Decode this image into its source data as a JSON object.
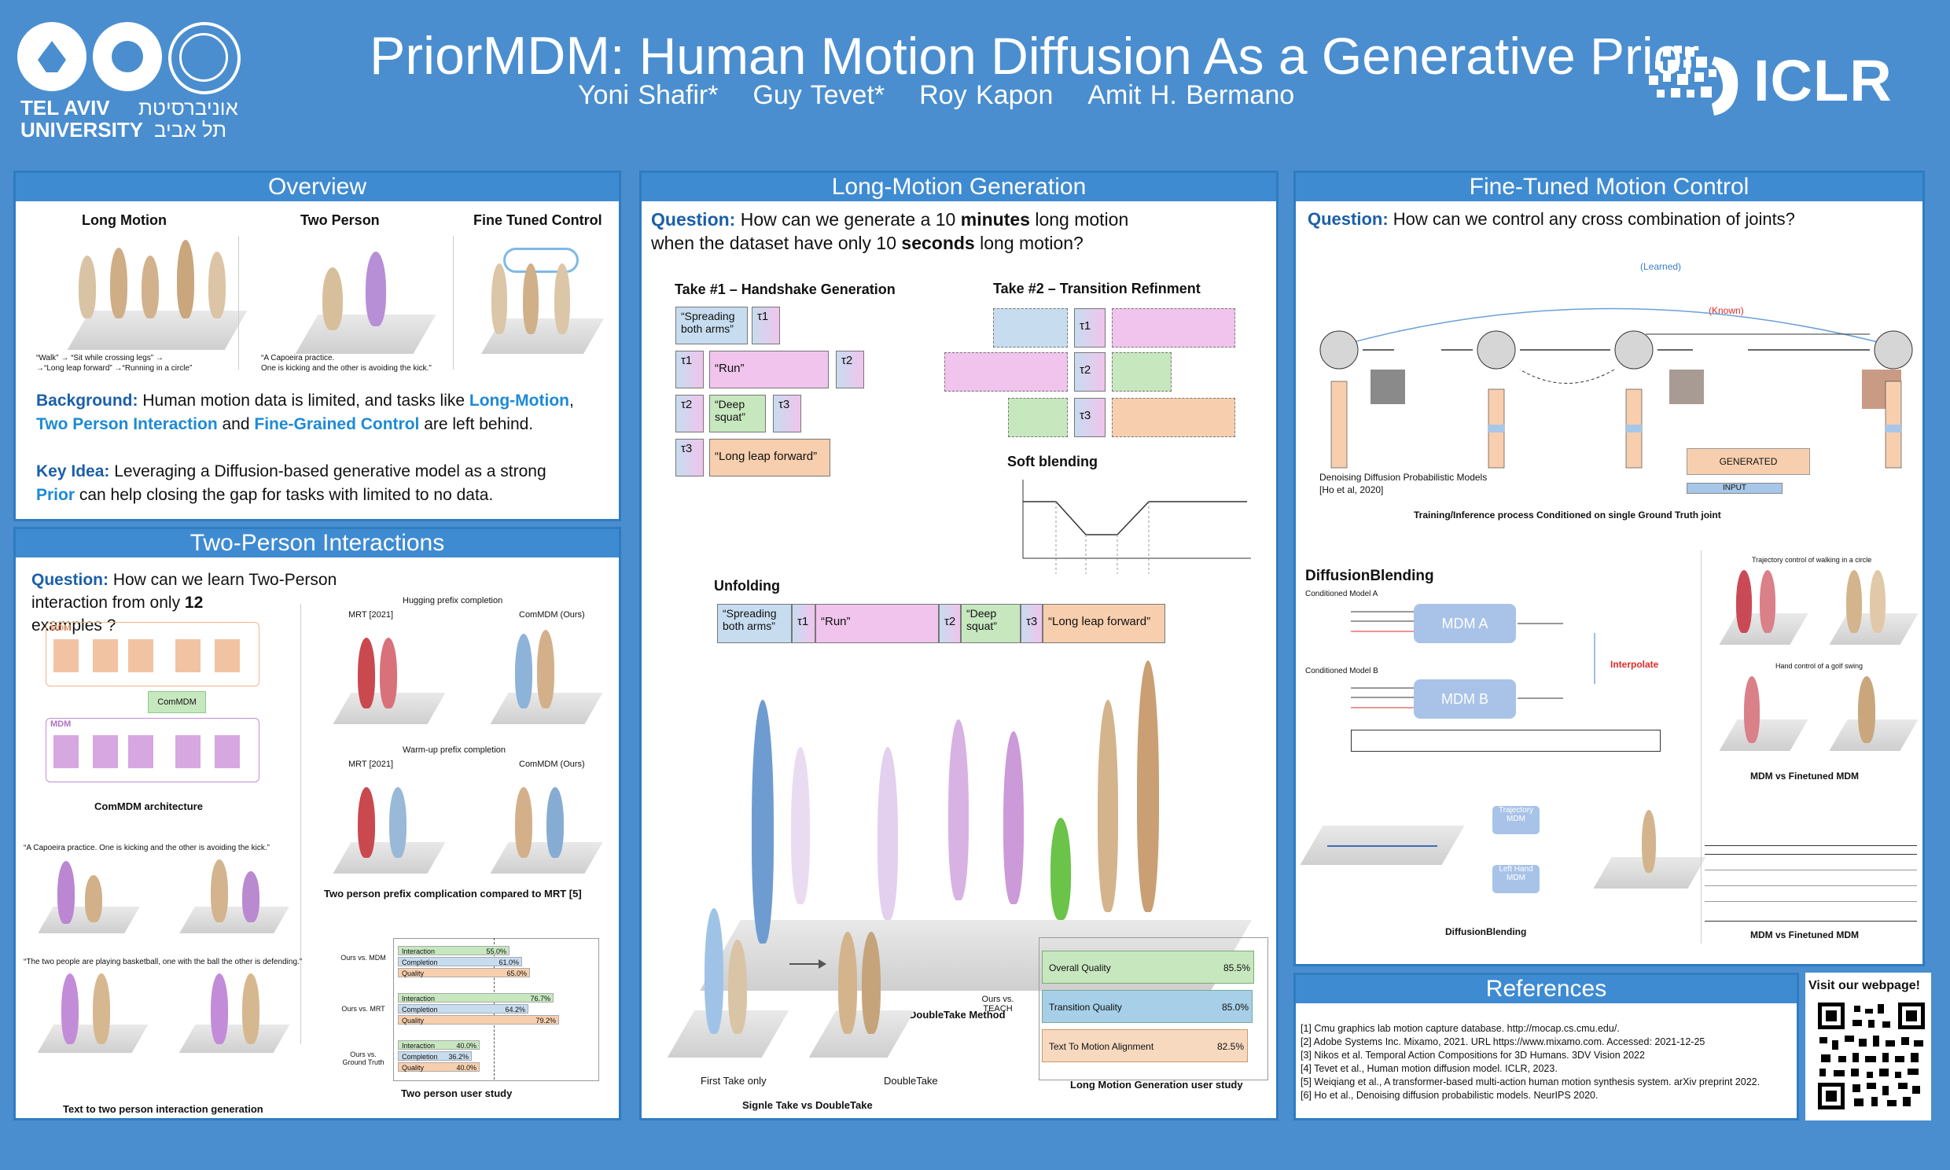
{
  "header": {
    "title_main": "PriorMDM",
    "title_rest": ": Human Motion Diffusion As a Generative Prior",
    "authors": [
      "Yoni Shafir*",
      "Guy Tevet*",
      "Roy Kapon",
      "Amit H. Bermano"
    ],
    "logo_left": {
      "line1": "TEL AVIV",
      "line2": "UNIVERSITY",
      "hebrew1": "אוניברסיטת",
      "hebrew2": "תל אביב"
    },
    "logo_right": "ICLR"
  },
  "overview": {
    "title": "Overview",
    "col1": "Long Motion",
    "col2": "Two Person",
    "col3": "Fine Tuned Control",
    "cap1a": "“Walk” → “Sit while crossing legs” →",
    "cap1b": "→“Long leap forward” →“Running in a circle”",
    "cap2a": "“A Capoeira practice.",
    "cap2b": "One is kicking and the other is avoiding the kick.”",
    "bg_label": "Background:",
    "bg_text1": " Human motion data is limited, and tasks like ",
    "bg_hl1": "Long-Motion",
    "bg_text2": ",",
    "bg_hl2": "Two Person Interaction",
    "bg_text3": " and ",
    "bg_hl3": "Fine-Grained Control",
    "bg_text4": " are left behind.",
    "key_label": "Key Idea:",
    "key_text1": " Leveraging a Diffusion-based generative model as a strong",
    "key_hl": "Prior",
    "key_text2": " can help closing the gap for tasks with limited to no data."
  },
  "two_person": {
    "title": "Two-Person Interactions",
    "q_label": "Question:",
    "q_text": " How can we learn Two-Person interaction from only ",
    "q_num": "12",
    "q_text2": "examples ?",
    "arch_caption": "ComMDM architecture",
    "commdm": "ComMDM",
    "mdm": "MDM",
    "hug_title": "Hugging prefix completion",
    "warm_title": "Warm-up prefix completion",
    "mrt": "MRT [2021]",
    "ours": "ComMDM (Ours)",
    "prefix_caption": "Two person prefix complication compared to MRT [5]",
    "text_cap1": "“A Capoeira practice. One is kicking and the other is avoiding the kick.”",
    "text_cap2": "“The two people are playing basketball, one with the ball the other is defending.”",
    "text_caption": "Text to two person interaction generation",
    "study_caption": "Two person user study",
    "study_groups": [
      {
        "label": "Ours vs. MDM",
        "rows": [
          {
            "name": "Interaction",
            "value": "55.0%"
          },
          {
            "name": "Completion",
            "value": "61.0%"
          },
          {
            "name": "Quality",
            "value": "65.0%"
          }
        ]
      },
      {
        "label": "Ours vs. MRT",
        "rows": [
          {
            "name": "Interaction",
            "value": "76.7%"
          },
          {
            "name": "Completion",
            "value": "64.2%"
          },
          {
            "name": "Quality",
            "value": "79.2%"
          }
        ]
      },
      {
        "label": "Ours vs. Ground Truth",
        "rows": [
          {
            "name": "Interaction",
            "value": "40.0%"
          },
          {
            "name": "Completion",
            "value": "36.2%"
          },
          {
            "name": "Quality",
            "value": "40.0%"
          }
        ]
      }
    ]
  },
  "long_motion": {
    "title": "Long-Motion Generation",
    "q_label": "Question:",
    "q_text1": " How can we generate a 10 ",
    "q_bold1": "minutes",
    "q_text2": " long motion",
    "q_text3": "when the dataset have only 10 ",
    "q_bold2": "seconds",
    "q_text4": " long motion?",
    "take1": "Take #1 – Handshake Generation",
    "take2": "Take #2 – Transition Refinment",
    "soft": "Soft blending",
    "unfolding": "Unfolding",
    "spreading": "“Spreading both arms”",
    "run": "“Run”",
    "deep": "“Deep squat”",
    "leap": "“Long leap forward”",
    "tau1": "τ1",
    "tau2": "τ2",
    "tau3": "τ3",
    "doubletake_caption": "DoubleTake Method",
    "first_take": "First Take only",
    "doubletake": "DoubleTake",
    "single_caption": "Signle Take vs DoubleTake",
    "teach": "Ours vs. TEACH",
    "study_caption": "Long Motion Generation user study",
    "study": [
      {
        "name": "Overall Quality",
        "value": "85.5%"
      },
      {
        "name": "Transition Quality",
        "value": "85.0%"
      },
      {
        "name": "Text To Motion Alignment",
        "value": "82.5%"
      }
    ]
  },
  "fine_tuned": {
    "title": "Fine-Tuned Motion Control",
    "q_label": "Question:",
    "q_text": " How can we control any cross combination of joints?",
    "learned": "(Learned)",
    "known": "(Known)",
    "ddpm_line1": "Denoising Diffusion Probabilistic Models",
    "ddpm_line2": "[Ho et al, 2020]",
    "generated": "GENERATED",
    "input": "INPUT",
    "training_caption": "Training/Inference process Conditioned on single Ground Truth joint",
    "blending_title": "DiffusionBlending",
    "cond_a": "Conditioned Model A",
    "cond_b": "Conditioned Model B",
    "mdm_a": "MDM A",
    "mdm_b": "MDM B",
    "interpolate": "Interpolate",
    "traj_mdm": "Trajectory MDM",
    "lefthand_mdm": "Left Hand MDM",
    "blending_caption": "DiffusionBlending",
    "traj_title": "Trajectory control of walking in a circle",
    "golf_title": "Hand control of a golf swing",
    "mdm_vs_caption1": "MDM vs Finetuned MDM",
    "mdm_vs_caption2": "MDM vs Finetuned MDM"
  },
  "references": {
    "title": "References",
    "items": [
      "[1] Cmu graphics lab motion capture database. http://mocap.cs.cmu.edu/.",
      "[2] Adobe Systems Inc. Mixamo, 2021. URL https://www.mixamo.com. Accessed: 2021-12-25",
      "[3] Nikos et al. Temporal Action Compositions for 3D Humans. 3DV Vision 2022",
      "[4] Tevet et al., Human motion diffusion model. ICLR, 2023.",
      "[5] Weiqiang et al., A transformer-based multi-action human motion synthesis system. arXiv preprint 2022.",
      "[6] Ho et al., Denoising diffusion probabilistic models. NeurIPS 2020."
    ],
    "visit": "Visit our webpage!"
  }
}
